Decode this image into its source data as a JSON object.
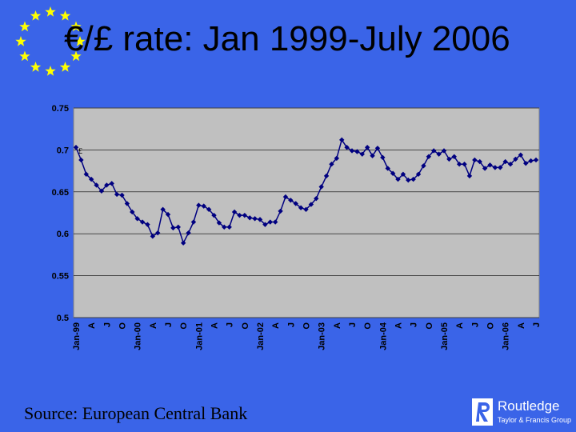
{
  "slide": {
    "title": "€/£ rate: Jan 1999-July 2006",
    "source": "Source: European Central Bank",
    "publisher": {
      "name": "Routledge",
      "tagline": "Taylor & Francis Group"
    }
  },
  "colors": {
    "background": "#3a64e8",
    "plot_area": "#c0c0c0",
    "series": "#000080",
    "stars": "#ffff00"
  },
  "chart_data": {
    "type": "line",
    "title": "",
    "xlabel": "",
    "ylabel": "",
    "ylim": [
      0.5,
      0.75
    ],
    "yticks": [
      "0.75",
      "0.7",
      "0.65",
      "0.6",
      "0.55",
      "0.5"
    ],
    "grid": true,
    "legend": "none",
    "x_tick_labels": [
      "Jan-99",
      "A",
      "J",
      "O",
      "Jan-00",
      "A",
      "J",
      "O",
      "Jan-01",
      "A",
      "J",
      "O",
      "Jan-02",
      "A",
      "J",
      "O",
      "Jan-03",
      "A",
      "J",
      "O",
      "Jan-04",
      "A",
      "J",
      "O",
      "Jan-05",
      "A",
      "J",
      "O",
      "Jan-06",
      "A",
      "J"
    ],
    "annotation": "£",
    "series": [
      {
        "values": [
          0.703,
          0.688,
          0.671,
          0.665,
          0.658,
          0.651,
          0.658,
          0.66,
          0.647,
          0.646,
          0.636,
          0.626,
          0.618,
          0.614,
          0.611,
          0.597,
          0.601,
          0.629,
          0.623,
          0.607,
          0.608,
          0.589,
          0.601,
          0.614,
          0.634,
          0.633,
          0.629,
          0.622,
          0.613,
          0.608,
          0.608,
          0.626,
          0.622,
          0.622,
          0.619,
          0.618,
          0.617,
          0.611,
          0.614,
          0.614,
          0.627,
          0.644,
          0.64,
          0.636,
          0.631,
          0.629,
          0.635,
          0.642,
          0.656,
          0.669,
          0.683,
          0.69,
          0.712,
          0.703,
          0.699,
          0.698,
          0.695,
          0.703,
          0.693,
          0.702,
          0.691,
          0.678,
          0.672,
          0.665,
          0.671,
          0.664,
          0.665,
          0.671,
          0.681,
          0.692,
          0.699,
          0.695,
          0.699,
          0.689,
          0.692,
          0.683,
          0.683,
          0.669,
          0.688,
          0.686,
          0.678,
          0.682,
          0.679,
          0.679,
          0.686,
          0.683,
          0.689,
          0.694,
          0.684,
          0.687,
          0.688
        ]
      }
    ]
  }
}
